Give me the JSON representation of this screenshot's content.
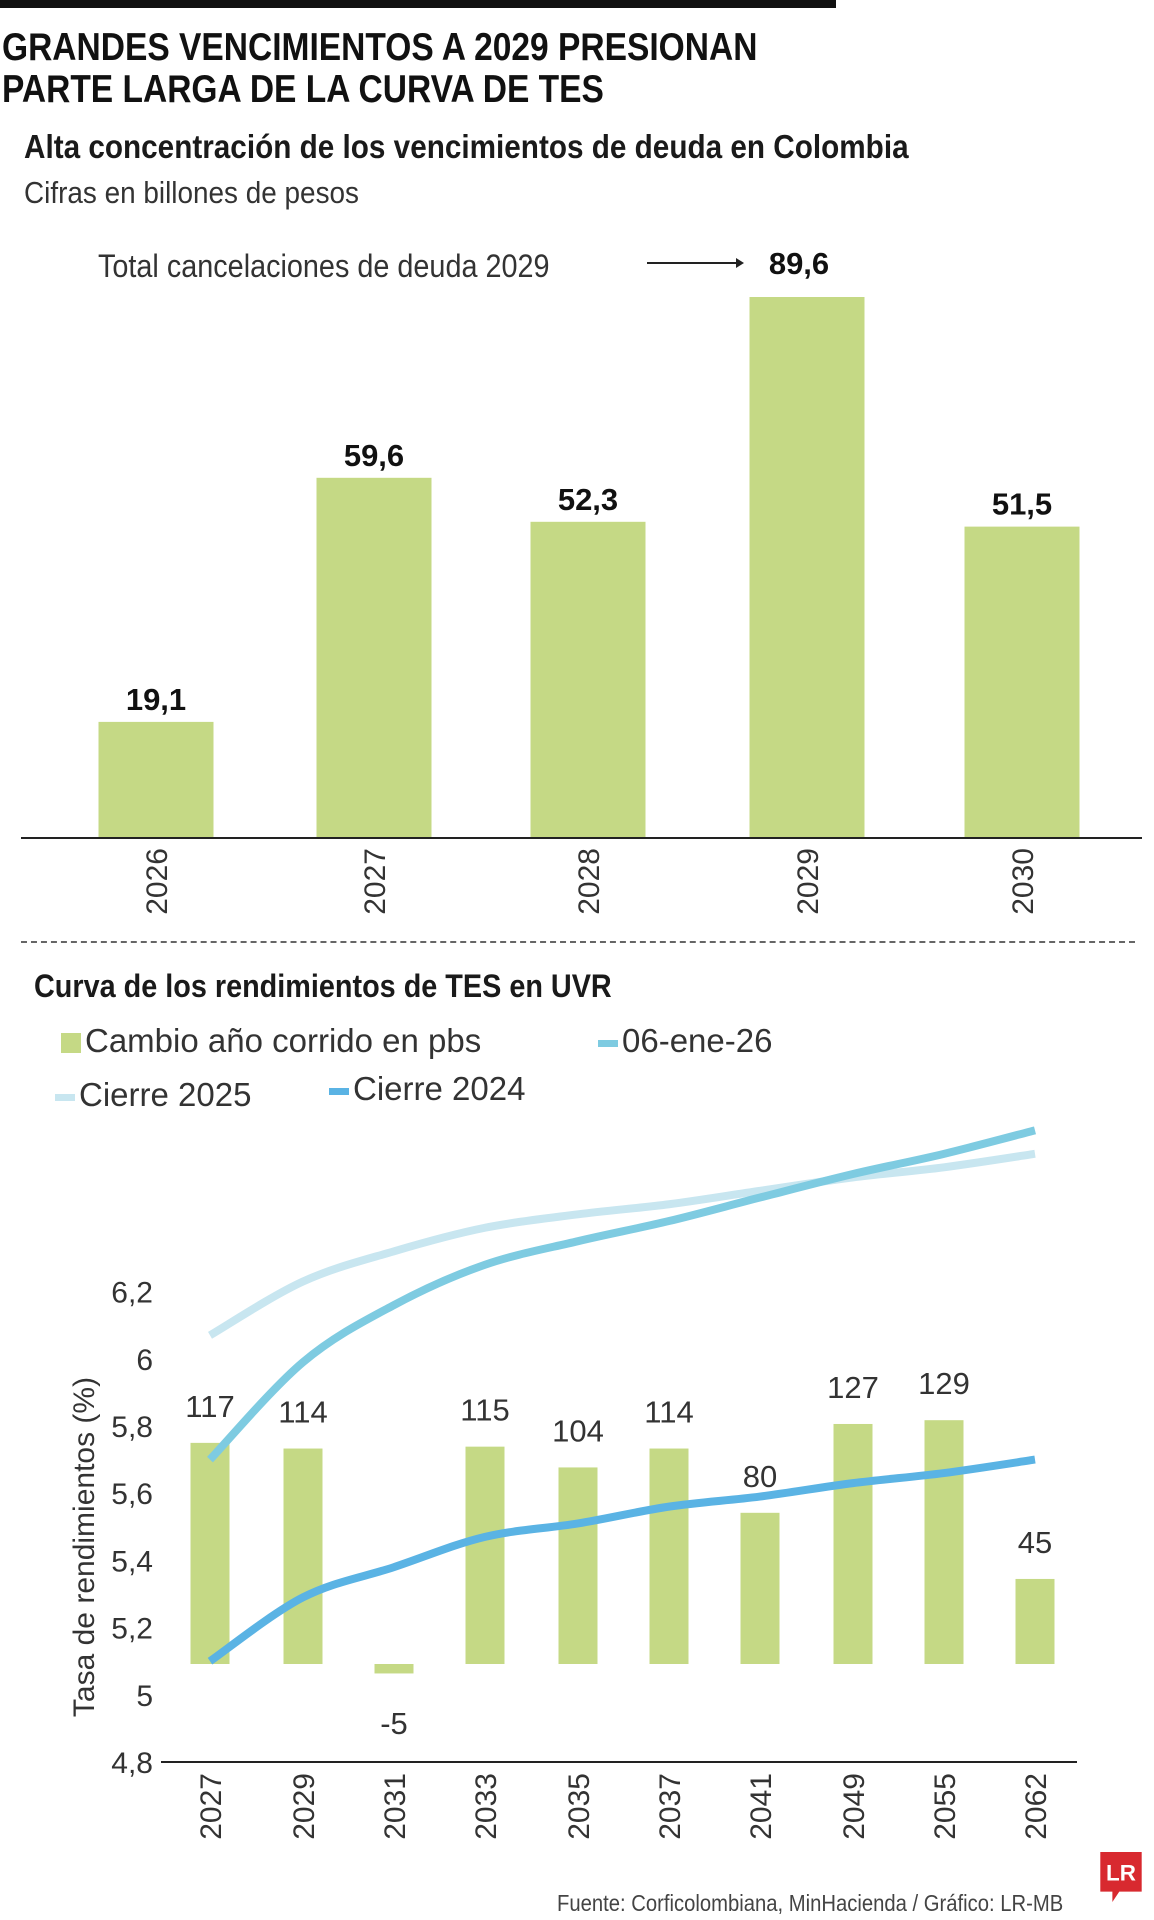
{
  "header": {
    "title_line1": "GRANDES VENCIMIENTOS A 2029 PRESIONAN",
    "title_line2": "PARTE LARGA DE LA CURVA DE TES"
  },
  "chart_data": [
    {
      "type": "bar",
      "title": "Alta concentración de los vencimientos de deuda en Colombia",
      "subtitle": "Cifras en billones de pesos",
      "annotation": "Total cancelaciones de deuda 2029",
      "categories": [
        "2026",
        "2027",
        "2028",
        "2029",
        "2030"
      ],
      "values": [
        19.1,
        59.6,
        52.3,
        89.6,
        51.5
      ],
      "value_labels": [
        "19,1",
        "59,6",
        "52,3",
        "89,6",
        "51,5"
      ],
      "bar_color": "#c5d985",
      "ylim": [
        0,
        89.6
      ],
      "grid": false
    },
    {
      "type": "bar+line",
      "title": "Curva de los rendimientos de TES en UVR",
      "ylabel": "Tasa de rendimientos (%)",
      "categories": [
        "2027",
        "2029",
        "2031",
        "2033",
        "2035",
        "2037",
        "2041",
        "2049",
        "2055",
        "2062"
      ],
      "yticks": [
        "4,8",
        "5",
        "5,2",
        "5,4",
        "5,6",
        "5,8",
        "6",
        "6,2"
      ],
      "ylim": [
        4.8,
        6.7
      ],
      "bars": {
        "name": "Cambio año corrido en pbs",
        "color": "#c5d985",
        "values": [
          117,
          114,
          -5,
          115,
          104,
          114,
          80,
          127,
          129,
          45
        ],
        "labels": [
          "117",
          "114",
          "-5",
          "115",
          "104",
          "114",
          "80",
          "127",
          "129",
          "45"
        ]
      },
      "series": [
        {
          "name": "06-ene-26",
          "color": "#7ecbe1",
          "values": [
            5.7,
            5.99,
            6.16,
            6.28,
            6.35,
            6.41,
            6.48,
            6.55,
            6.61,
            6.68
          ]
        },
        {
          "name": "Cierre 2025",
          "color": "#c8e6f0",
          "values": [
            6.07,
            6.23,
            6.32,
            6.39,
            6.43,
            6.46,
            6.5,
            6.54,
            6.57,
            6.61
          ]
        },
        {
          "name": "Cierre 2024",
          "color": "#5ab3e4",
          "values": [
            5.1,
            5.29,
            5.38,
            5.47,
            5.51,
            5.56,
            5.59,
            5.63,
            5.66,
            5.7
          ]
        }
      ],
      "legend_placement": "top-left",
      "grid": false
    }
  ],
  "footer": {
    "source": "Fuente: Corficolombiana, MinHacienda / Gráfico: LR-MB",
    "logo": "LR",
    "logo_color": "#d8292f"
  }
}
